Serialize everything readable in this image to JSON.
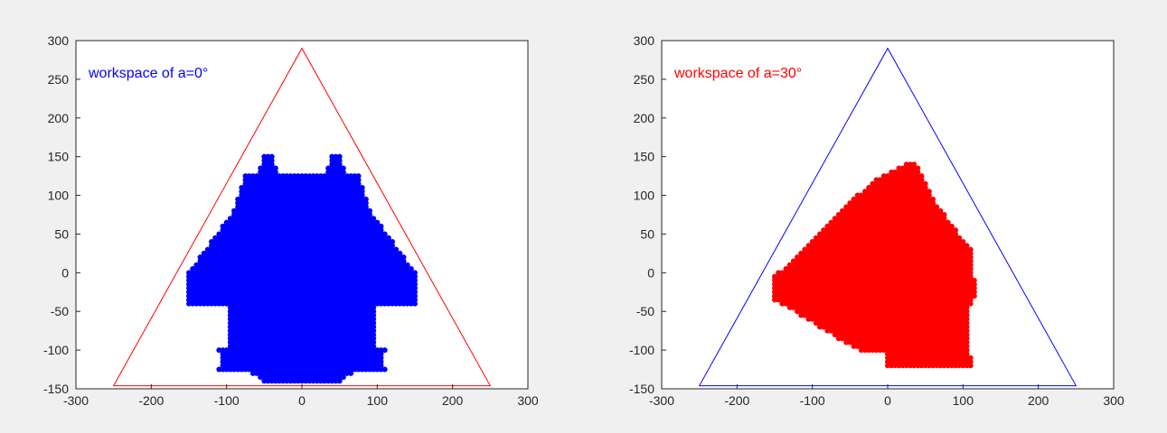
{
  "figure": {
    "background": "#f0f0f0"
  },
  "chart_data": [
    {
      "type": "scatter",
      "annotation": "workspace of a=0°",
      "annotation_color": "#0000ff",
      "xlim": [
        -300,
        300
      ],
      "ylim": [
        -150,
        300
      ],
      "xticks": [
        -300,
        -200,
        -100,
        0,
        100,
        200,
        300
      ],
      "yticks": [
        -150,
        -100,
        -50,
        0,
        50,
        100,
        150,
        200,
        250,
        300
      ],
      "grid": false,
      "boundary": {
        "color": "#ff0000",
        "vertices": [
          [
            -250,
            -146
          ],
          [
            250,
            -146
          ],
          [
            0,
            290
          ]
        ]
      },
      "points": {
        "color": "#0000ff",
        "shape": "a0",
        "step": 5
      }
    },
    {
      "type": "scatter",
      "annotation": "workspace of a=30°",
      "annotation_color": "#ff0000",
      "xlim": [
        -300,
        300
      ],
      "ylim": [
        -150,
        300
      ],
      "xticks": [
        -300,
        -200,
        -100,
        0,
        100,
        200,
        300
      ],
      "yticks": [
        -150,
        -100,
        -50,
        0,
        50,
        100,
        150,
        200,
        250,
        300
      ],
      "grid": false,
      "boundary": {
        "color": "#0000ff",
        "vertices": [
          [
            -250,
            -146
          ],
          [
            250,
            -146
          ],
          [
            0,
            290
          ]
        ]
      },
      "points": {
        "color": "#ff0000",
        "shape": "a30",
        "step": 5
      }
    }
  ]
}
